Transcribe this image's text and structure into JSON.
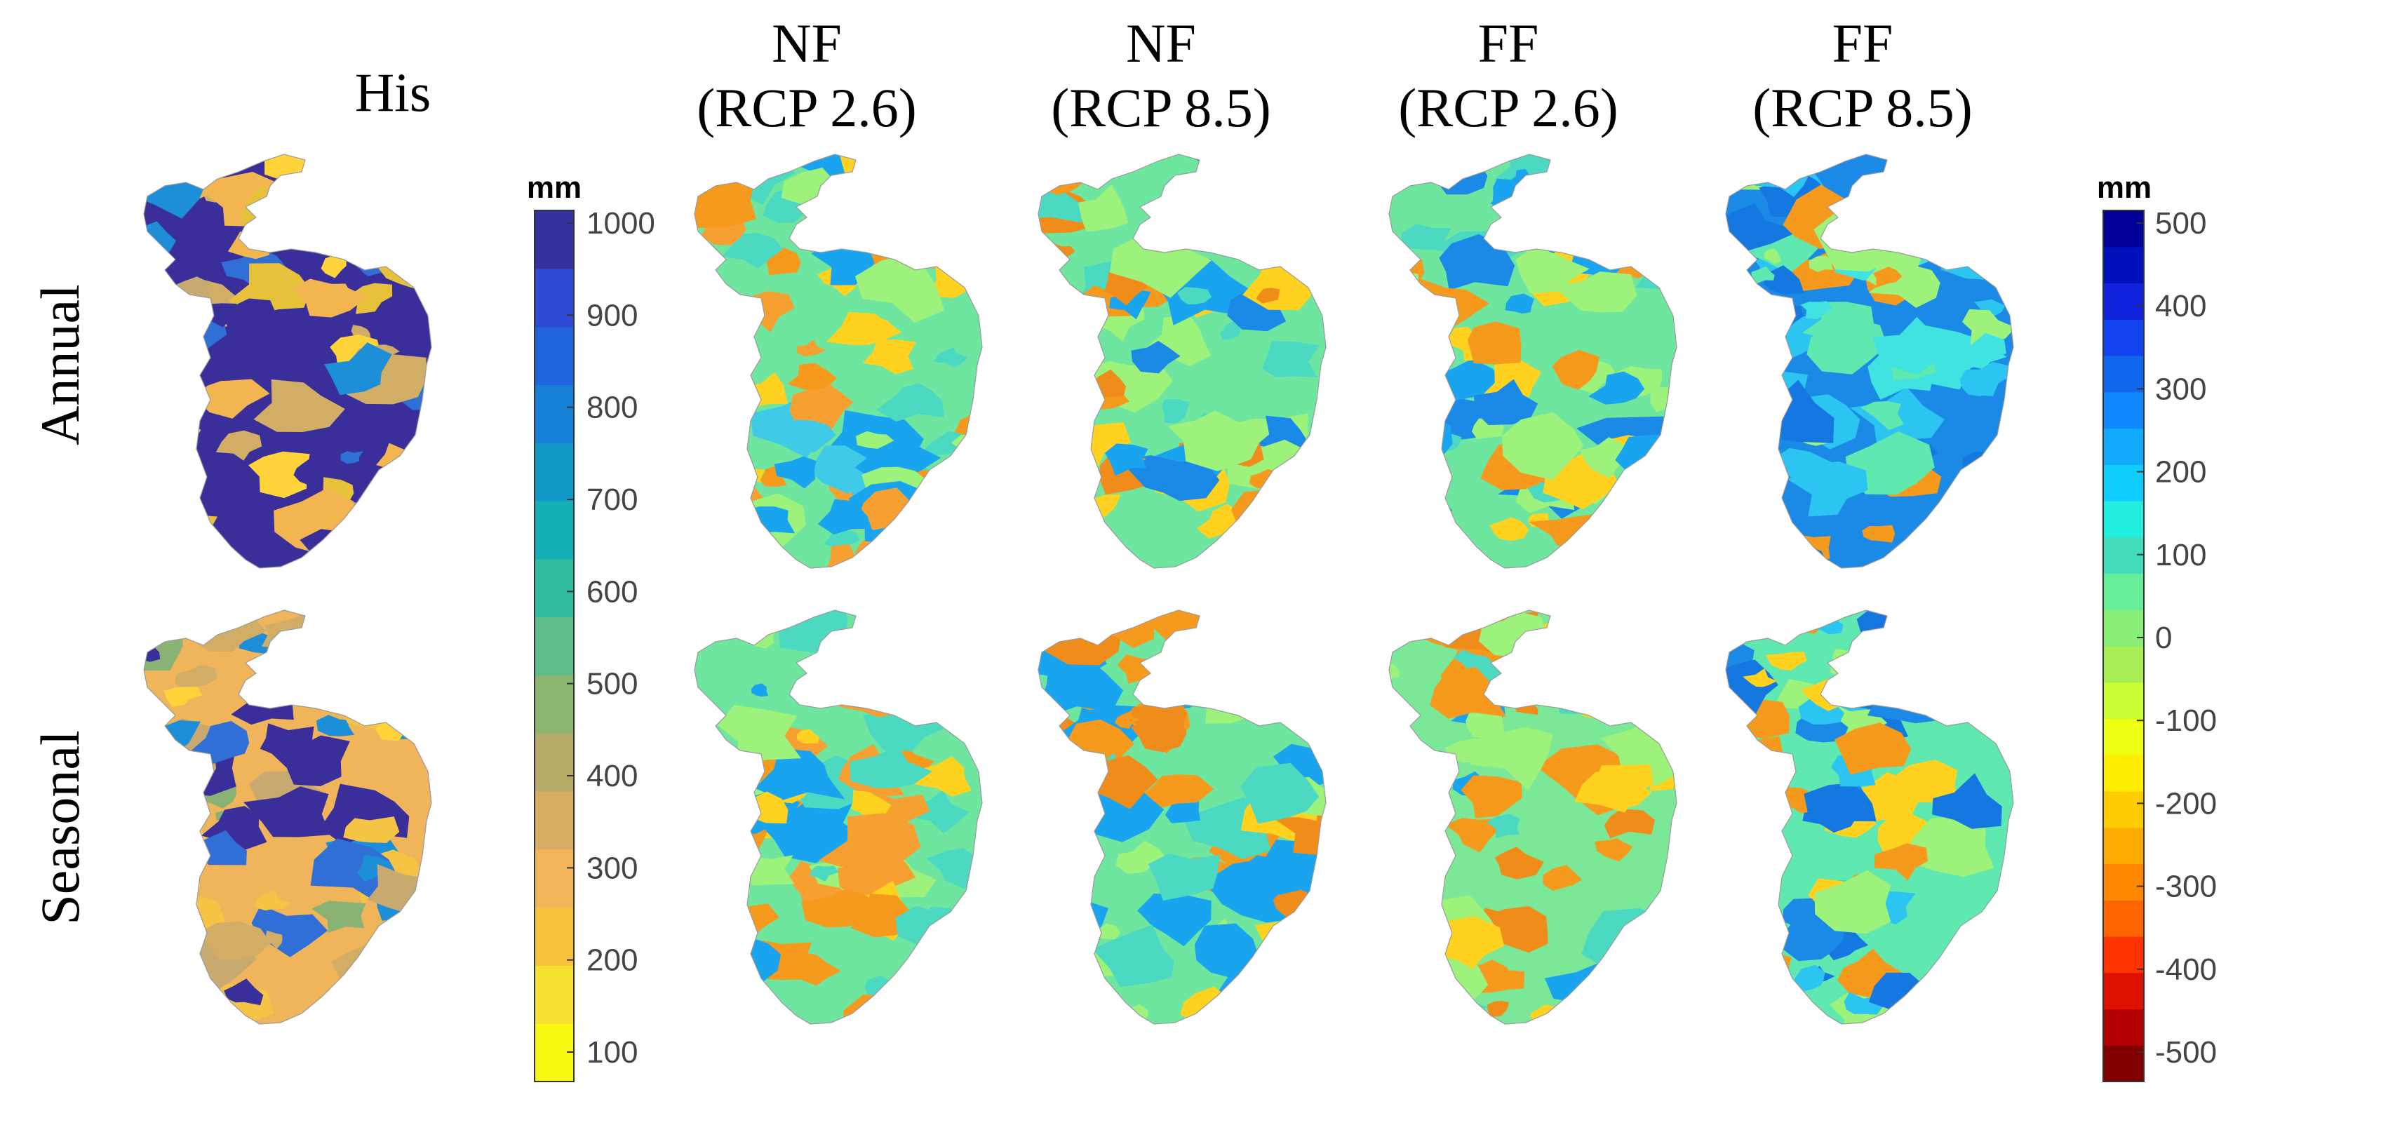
{
  "columns": [
    {
      "line1": "His",
      "line2": ""
    },
    {
      "line1": "NF",
      "line2": "(RCP 2.6)"
    },
    {
      "line1": "NF",
      "line2": "(RCP 8.5)"
    },
    {
      "line1": "FF",
      "line2": "(RCP 2.6)"
    },
    {
      "line1": "FF",
      "line2": "(RCP 8.5)"
    }
  ],
  "rows": [
    "Annual",
    "Seasonal"
  ],
  "colorbar_his": {
    "unit": "mm",
    "ticks": [
      "1000",
      "900",
      "800",
      "700",
      "600",
      "500",
      "400",
      "300",
      "200",
      "100"
    ],
    "colors": [
      "#f8f911",
      "#f5e12f",
      "#fbc33c",
      "#f4b45a",
      "#d8ad63",
      "#b6aa68",
      "#8bb571",
      "#5fbd8c",
      "#2fbb9f",
      "#13b1b5",
      "#1299c8",
      "#167fd6",
      "#2064de",
      "#2f4ad7",
      "#36319f"
    ]
  },
  "colorbar_change": {
    "unit": "mm",
    "ticks": [
      "500",
      "400",
      "300",
      "200",
      "100",
      "0",
      "-100",
      "-200",
      "-300",
      "-400",
      "-500"
    ],
    "colors": [
      "#800000",
      "#b20000",
      "#dd1100",
      "#ff3300",
      "#ff6600",
      "#ff8800",
      "#ffaa00",
      "#ffcc00",
      "#ffee00",
      "#eeff11",
      "#ccff33",
      "#aaee55",
      "#88ee77",
      "#66ee99",
      "#44ddbb",
      "#22eedd",
      "#11ccff",
      "#11aaff",
      "#1188ff",
      "#1166ee",
      "#1144ee",
      "#1122dd",
      "#0011bb",
      "#000099"
    ]
  },
  "map_palettes": {
    "his_annual": {
      "base": "#3a2f9a",
      "patches": [
        "#f3b54f",
        "#e8c13a",
        "#d1ad66",
        "#2f6fd6",
        "#1d8fd8",
        "#ffd43a",
        "#c8a970",
        "#3a2f9a"
      ]
    },
    "his_seasonal": {
      "base": "#f0b45a",
      "patches": [
        "#3a2f9a",
        "#2f6fd6",
        "#ffd43a",
        "#d1ad66",
        "#8ab274",
        "#1d8fd8",
        "#c8a970",
        "#f6c445"
      ]
    },
    "nf26_annual": {
      "base": "#6ee6a0",
      "patches": [
        "#f59a1c",
        "#19a4f0",
        "#4cd9c2",
        "#ffd21f",
        "#9cf27a",
        "#f5a030",
        "#3fcbe8"
      ]
    },
    "nf26_seasonal": {
      "base": "#6ee6a0",
      "patches": [
        "#f59a1c",
        "#ffd21f",
        "#19a4f0",
        "#9cf27a",
        "#4cd9c2",
        "#f5a030"
      ]
    },
    "nf85_annual": {
      "base": "#6ee6a0",
      "patches": [
        "#f59a1c",
        "#19a4f0",
        "#4cd9c2",
        "#ffd21f",
        "#9cf27a",
        "#1a8ae6",
        "#f08c1a"
      ]
    },
    "nf85_seasonal": {
      "base": "#6ee6a0",
      "patches": [
        "#f59a1c",
        "#ffd21f",
        "#19a4f0",
        "#9cf27a",
        "#4cd9c2",
        "#f08c1a"
      ]
    },
    "ff26_annual": {
      "base": "#6ee6a0",
      "patches": [
        "#f59a1c",
        "#19a4f0",
        "#4cd9c2",
        "#9cf27a",
        "#ffd21f",
        "#1a8ae6"
      ]
    },
    "ff26_seasonal": {
      "base": "#7ae896",
      "patches": [
        "#f59a1c",
        "#ffd21f",
        "#19a4f0",
        "#9cf27a",
        "#4cd9c2",
        "#f08c1a"
      ]
    },
    "ff85_annual": {
      "base": "#1a8ae6",
      "patches": [
        "#2cc4f0",
        "#41e3e0",
        "#5fe8b0",
        "#1478e0",
        "#f59a1c",
        "#9cf27a"
      ]
    },
    "ff85_seasonal": {
      "base": "#5fe8b0",
      "patches": [
        "#1a8ae6",
        "#2cc4f0",
        "#ffd21f",
        "#f59a1c",
        "#9cf27a",
        "#1478e0"
      ]
    }
  }
}
